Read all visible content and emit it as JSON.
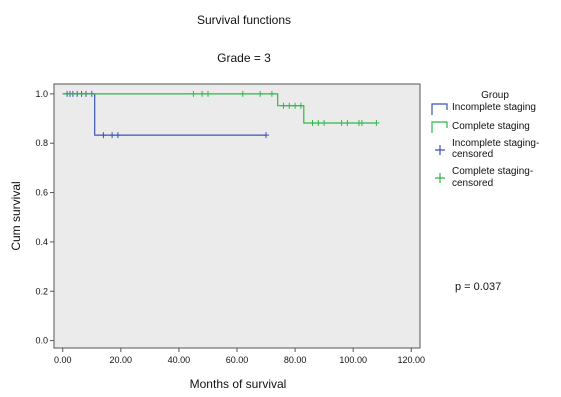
{
  "chart_data": {
    "type": "line",
    "title": "Survival functions",
    "subtitle": "Grade = 3",
    "xlabel": "Months of survival",
    "ylabel": "Cum survival",
    "xlim": [
      -3,
      123
    ],
    "ylim": [
      -0.03,
      1.04
    ],
    "x_ticks": [
      "0.00",
      "20.00",
      "40.00",
      "60.00",
      "80.00",
      "100.00",
      "120.00"
    ],
    "y_ticks": [
      "0.0",
      "0.2",
      "0.4",
      "0.6",
      "0.8",
      "1.0"
    ],
    "grid": false,
    "legend_title": "Group",
    "legend_position": "right",
    "series": [
      {
        "name": "Incomplete staging",
        "censored_name": "Incomplete staging-censored",
        "color": "#3b55b5",
        "steps": [
          [
            0,
            1.0
          ],
          [
            11,
            1.0
          ],
          [
            11,
            0.833
          ],
          [
            70,
            0.833
          ]
        ],
        "censored": [
          [
            1.5,
            1.0
          ],
          [
            2.5,
            1.0
          ],
          [
            3.5,
            1.0
          ],
          [
            5,
            1.0
          ],
          [
            6.5,
            1.0
          ],
          [
            8,
            1.0
          ],
          [
            10,
            1.0
          ],
          [
            14,
            0.833
          ],
          [
            17,
            0.833
          ],
          [
            19,
            0.833
          ],
          [
            70,
            0.833
          ]
        ]
      },
      {
        "name": "Complete staging",
        "censored_name": "Complete staging-censored",
        "color": "#2fb84a",
        "steps": [
          [
            0,
            1.0
          ],
          [
            74,
            1.0
          ],
          [
            74,
            0.952
          ],
          [
            83,
            0.952
          ],
          [
            83,
            0.882
          ],
          [
            108,
            0.882
          ]
        ],
        "censored": [
          [
            45,
            1.0
          ],
          [
            48,
            1.0
          ],
          [
            50,
            1.0
          ],
          [
            62,
            1.0
          ],
          [
            68,
            1.0
          ],
          [
            72,
            1.0
          ],
          [
            76,
            0.952
          ],
          [
            78,
            0.952
          ],
          [
            80,
            0.952
          ],
          [
            82,
            0.952
          ],
          [
            86,
            0.882
          ],
          [
            88,
            0.882
          ],
          [
            90,
            0.882
          ],
          [
            96,
            0.882
          ],
          [
            98,
            0.882
          ],
          [
            102,
            0.882
          ],
          [
            103,
            0.882
          ],
          [
            108,
            0.882
          ]
        ]
      }
    ],
    "annotation": "p = 0.037"
  }
}
